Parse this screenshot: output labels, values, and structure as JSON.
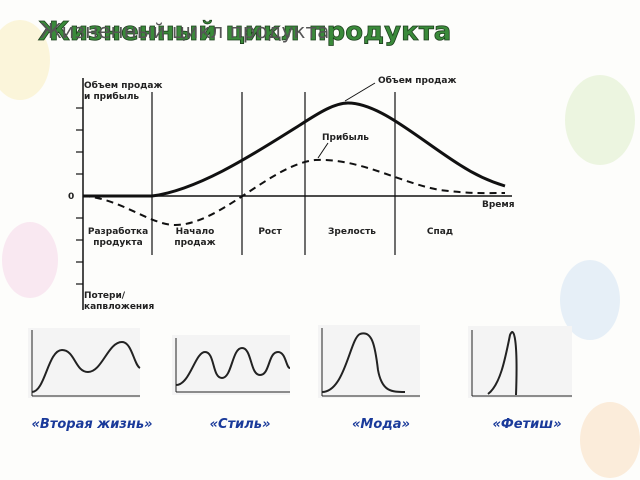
{
  "title": "Жизненный цикл продукта",
  "title_shadow": "Жизненный цикл продукта",
  "diagram": {
    "y_axis_label": [
      "Объем продаж",
      "и прибыль"
    ],
    "zero": "0",
    "x_axis_label": "Время",
    "sales_label": "Объем продаж",
    "profit_label": "Прибыль",
    "loss_label": [
      "Потери/",
      "капвложения"
    ],
    "stages": [
      [
        "Разработка",
        "продукта"
      ],
      [
        "Начало",
        "продаж"
      ],
      [
        "Рост"
      ],
      [
        "Зрелость"
      ],
      [
        "Спад"
      ]
    ]
  },
  "variants": [
    "«Вторая жизнь»",
    "«Стиль»",
    "«Мода»",
    "«Фетиш»"
  ]
}
